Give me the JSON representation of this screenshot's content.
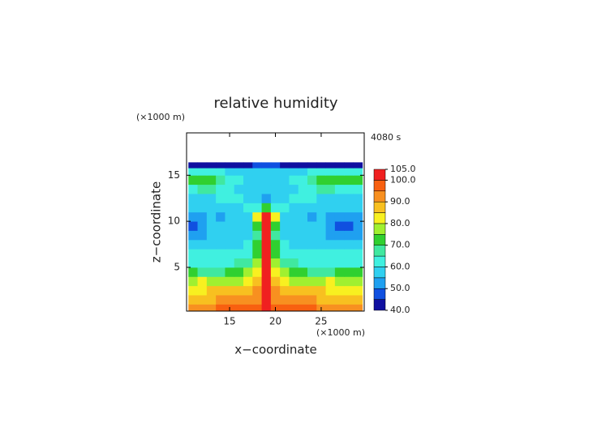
{
  "chart_data": {
    "type": "contour",
    "title": "relative humidity",
    "time_label": "4080 s",
    "xlabel": "x−coordinate",
    "ylabel": "z−coordinate",
    "x_unit": "(×1000 m)",
    "y_unit": "(×1000 m)",
    "xlim": [
      10.3,
      29.7
    ],
    "ylim": [
      0.25,
      19.6
    ],
    "xticks": [
      15,
      20,
      25
    ],
    "yticks": [
      5,
      10,
      15
    ],
    "x": [
      11,
      12,
      13,
      14,
      15,
      16,
      17,
      18,
      19,
      20,
      21,
      22,
      23,
      24,
      25,
      26,
      27,
      28,
      29
    ],
    "z": [
      0.5,
      1.5,
      2.5,
      3.5,
      4.5,
      5.5,
      6.5,
      7.5,
      8.5,
      9.5,
      10.5,
      11.5,
      12.5,
      13.5,
      14.5,
      15.5,
      16.1
    ],
    "values": [
      [
        92,
        93,
        94,
        95,
        96,
        97,
        97,
        96,
        100,
        96,
        97,
        97,
        96,
        95,
        94,
        93,
        92,
        92,
        92
      ],
      [
        88,
        88,
        89,
        90,
        90,
        91,
        92,
        93,
        100,
        93,
        92,
        91,
        90,
        90,
        89,
        88,
        88,
        88,
        88
      ],
      [
        83,
        84,
        85,
        85,
        86,
        87,
        88,
        90,
        100,
        90,
        88,
        87,
        86,
        85,
        85,
        84,
        83,
        83,
        83
      ],
      [
        78,
        80,
        78,
        76,
        77,
        79,
        82,
        86,
        100,
        86,
        82,
        79,
        77,
        76,
        78,
        80,
        79,
        78,
        78
      ],
      [
        70,
        68,
        66,
        68,
        70,
        73,
        76,
        82,
        100,
        82,
        76,
        73,
        70,
        68,
        66,
        68,
        70,
        70,
        70
      ],
      [
        64,
        63,
        62,
        63,
        64,
        66,
        68,
        75,
        100,
        75,
        68,
        66,
        64,
        63,
        62,
        63,
        64,
        64,
        64
      ],
      [
        60,
        60,
        61,
        60,
        60,
        62,
        64,
        72,
        100,
        72,
        64,
        62,
        60,
        60,
        61,
        60,
        60,
        60,
        60
      ],
      [
        58,
        57,
        56,
        56,
        57,
        58,
        60,
        70,
        100,
        70,
        60,
        58,
        57,
        56,
        56,
        57,
        58,
        58,
        58
      ],
      [
        52,
        54,
        56,
        56,
        56,
        57,
        58,
        68,
        100,
        68,
        58,
        57,
        56,
        56,
        56,
        54,
        52,
        52,
        52
      ],
      [
        48,
        53,
        56,
        56,
        56,
        55,
        57,
        70,
        102,
        70,
        57,
        55,
        56,
        56,
        56,
        53,
        48,
        49,
        50
      ],
      [
        50,
        54,
        55,
        52,
        56,
        56,
        58,
        80,
        103,
        80,
        58,
        56,
        56,
        52,
        55,
        54,
        50,
        50,
        52
      ],
      [
        55,
        55,
        56,
        57,
        58,
        58,
        60,
        62,
        70,
        62,
        60,
        58,
        58,
        57,
        56,
        55,
        55,
        55,
        55
      ],
      [
        58,
        58,
        59,
        60,
        60,
        60,
        58,
        56,
        52,
        56,
        58,
        60,
        60,
        60,
        59,
        58,
        58,
        58,
        58
      ],
      [
        64,
        66,
        66,
        62,
        60,
        58,
        57,
        56,
        56,
        56,
        57,
        58,
        60,
        62,
        66,
        66,
        64,
        64,
        64
      ],
      [
        72,
        74,
        72,
        66,
        62,
        60,
        58,
        57,
        57,
        57,
        58,
        60,
        62,
        66,
        72,
        74,
        72,
        72,
        72
      ],
      [
        62,
        64,
        64,
        62,
        58,
        56,
        55,
        55,
        55,
        55,
        55,
        56,
        58,
        62,
        64,
        64,
        62,
        62,
        62
      ],
      [
        42,
        42,
        42,
        42,
        43,
        43,
        44,
        45,
        45,
        45,
        44,
        43,
        43,
        42,
        42,
        42,
        42,
        42,
        42
      ]
    ],
    "levels": [
      40,
      45,
      50,
      55,
      60,
      65,
      70,
      75,
      80,
      85,
      90,
      95,
      100,
      105
    ],
    "colors": [
      "#1010a0",
      "#1050e0",
      "#1fa0f0",
      "#30d0f0",
      "#40f0e0",
      "#40e8a0",
      "#30d030",
      "#a0f030",
      "#f8f020",
      "#f8c020",
      "#f89020",
      "#f86010",
      "#f02020",
      "#f0a0a0"
    ],
    "colorbar_ticks": [
      {
        "value": 105,
        "label": "105.0"
      },
      {
        "value": 100,
        "label": "100.0"
      },
      {
        "value": 90,
        "label": "90.0"
      },
      {
        "value": 80,
        "label": "80.0"
      },
      {
        "value": 70,
        "label": "70.0"
      },
      {
        "value": 60,
        "label": "60.0"
      },
      {
        "value": 50,
        "label": "50.0"
      },
      {
        "value": 40,
        "label": "40.0"
      }
    ]
  }
}
